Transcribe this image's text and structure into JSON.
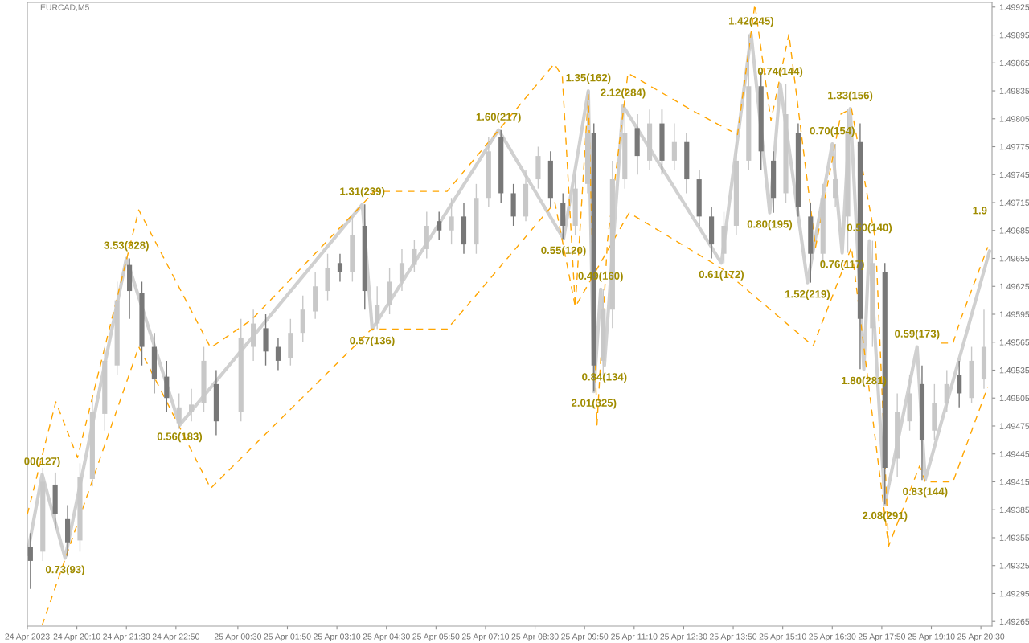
{
  "chart_data": {
    "type": "candlestick",
    "title": "EURCAD,M5",
    "xlim": [
      "2023-04-24T18:50",
      "2023-04-25T20:48"
    ],
    "xticks": [
      {
        "value": "2023-04-24T18:50",
        "label": "24 Apr 2023"
      },
      {
        "value": "2023-04-24T20:10",
        "label": "24 Apr 20:10"
      },
      {
        "value": "2023-04-24T21:30",
        "label": "24 Apr 21:30"
      },
      {
        "value": "2023-04-24T22:50",
        "label": "24 Apr 22:50"
      },
      {
        "value": "2023-04-25T00:30",
        "label": "25 Apr 00:30"
      },
      {
        "value": "2023-04-25T01:50",
        "label": "25 Apr 01:50"
      },
      {
        "value": "2023-04-25T03:10",
        "label": "25 Apr 03:10"
      },
      {
        "value": "2023-04-25T04:30",
        "label": "25 Apr 04:30"
      },
      {
        "value": "2023-04-25T05:50",
        "label": "25 Apr 05:50"
      },
      {
        "value": "2023-04-25T07:10",
        "label": "25 Apr 07:10"
      },
      {
        "value": "2023-04-25T08:30",
        "label": "25 Apr 08:30"
      },
      {
        "value": "2023-04-25T09:50",
        "label": "25 Apr 09:50"
      },
      {
        "value": "2023-04-25T11:10",
        "label": "25 Apr 11:10"
      },
      {
        "value": "2023-04-25T12:30",
        "label": "25 Apr 12:30"
      },
      {
        "value": "2023-04-25T13:50",
        "label": "25 Apr 13:50"
      },
      {
        "value": "2023-04-25T15:10",
        "label": "25 Apr 15:10"
      },
      {
        "value": "2023-04-25T16:30",
        "label": "25 Apr 16:30"
      },
      {
        "value": "2023-04-25T17:50",
        "label": "25 Apr 17:50"
      },
      {
        "value": "2023-04-25T19:10",
        "label": "25 Apr 19:10"
      },
      {
        "value": "2023-04-25T20:30",
        "label": "25 Apr 20:30"
      }
    ],
    "ylim": [
      1.4926,
      1.4993
    ],
    "yticks": [
      1.49265,
      1.49295,
      1.49325,
      1.49355,
      1.49385,
      1.49415,
      1.49445,
      1.49475,
      1.49505,
      1.49535,
      1.49565,
      1.49595,
      1.49625,
      1.49655,
      1.49685,
      1.49715,
      1.49745,
      1.49775,
      1.49805,
      1.49835,
      1.49865,
      1.49895,
      1.49925
    ],
    "series": [
      {
        "type": "line",
        "color": "#ffa500",
        "line_style": "dashed",
        "x": [
          "2023-04-24T18:50",
          "2023-04-24T19:36",
          "2023-04-24T20:11",
          "2023-04-24T21:50",
          "2023-04-24T23:46",
          "2023-04-25T00:52",
          "2023-04-25T03:51",
          "2023-04-25T04:10",
          "2023-04-25T06:08",
          "2023-04-25T09:01",
          "2023-04-25T09:14",
          "2023-04-25T09:35",
          "2023-04-25T09:56",
          "2023-04-25T10:10",
          "2023-04-25T10:27",
          "2023-04-25T11:00",
          "2023-04-25T12:49",
          "2023-04-25T13:57",
          "2023-04-25T14:25",
          "2023-04-25T14:51",
          "2023-04-25T15:20",
          "2023-04-25T16:03",
          "2023-04-25T16:44",
          "2023-04-25T17:01",
          "2023-04-25T17:40",
          "2023-04-25T18:01",
          "2023-04-25T18:30",
          "2023-04-25T19:26",
          "2023-04-25T19:45",
          "2023-04-25T19:57",
          "2023-04-25T20:41"
        ],
        "values": [
          1.4938,
          1.49501,
          1.49441,
          1.49707,
          1.49559,
          1.49589,
          1.49713,
          1.49727,
          1.49727,
          1.49864,
          1.49851,
          1.49603,
          1.49831,
          1.49476,
          1.49674,
          1.49854,
          1.49812,
          1.49788,
          1.49928,
          1.49803,
          1.49896,
          1.49667,
          1.4981,
          1.49816,
          1.49674,
          1.49346,
          null,
          1.49564,
          1.49564,
          1.49589,
          1.49667
        ]
      },
      {
        "type": "line",
        "color": "#ffa500",
        "line_style": "dashed",
        "x": [
          "2023-04-24T19:14",
          "2023-04-24T21:50",
          "2023-04-24T23:46",
          "2023-04-25T04:06",
          "2023-04-25T06:08",
          "2023-04-25T09:02",
          "2023-04-25T09:35",
          "2023-04-25T11:02",
          "2023-04-25T13:32",
          "2023-04-25T15:59",
          "2023-04-25T17:01",
          "2023-04-25T18:01",
          "2023-04-25T18:51",
          "2023-04-25T19:00",
          "2023-04-25T19:45",
          "2023-04-25T20:41"
        ],
        "values": [
          1.49261,
          1.4956,
          1.49408,
          1.49579,
          1.49579,
          1.49715,
          1.49603,
          1.49704,
          1.49644,
          1.49561,
          1.49667,
          1.49346,
          1.49432,
          1.49415,
          1.49415,
          1.49517
        ]
      },
      {
        "type": "line",
        "color": "#d0d0d0",
        "line_style": "solid",
        "x": [
          "2023-04-24T18:50",
          "2023-04-24T19:14",
          "2023-04-24T19:51",
          "2023-04-24T21:30",
          "2023-04-24T22:56",
          "2023-04-25T03:51",
          "2023-04-25T04:07",
          "2023-04-25T07:31",
          "2023-04-25T09:16",
          "2023-04-25T09:56",
          "2023-04-25T10:05",
          "2023-04-25T10:16",
          "2023-04-25T10:22",
          "2023-04-25T10:52",
          "2023-04-25T13:31",
          "2023-04-25T14:19",
          "2023-04-25T14:49",
          "2023-04-25T15:06",
          "2023-04-25T15:50",
          "2023-04-25T16:30",
          "2023-04-25T16:46",
          "2023-04-25T16:59",
          "2023-04-25T17:21",
          "2023-04-25T17:30",
          "2023-04-25T17:55",
          "2023-04-25T18:47",
          "2023-04-25T19:00",
          "2023-04-25T20:44"
        ],
        "values": [
          1.49337,
          1.49423,
          1.49333,
          1.49655,
          1.49476,
          1.49713,
          1.49579,
          1.49793,
          1.49676,
          1.49835,
          1.49512,
          1.49622,
          1.4954,
          1.49819,
          1.4965,
          1.49896,
          1.49704,
          1.49842,
          1.49629,
          1.49778,
          1.49661,
          1.49816,
          1.49536,
          1.49674,
          1.49391,
          1.4956,
          1.49417,
          1.49663
        ]
      },
      {
        "type": "candlestick",
        "color": "#c8c8c8",
        "x": [
          "2023-04-24T19:15",
          "2023-04-24T20:15",
          "2023-04-24T20:35",
          "2023-04-24T20:55",
          "2023-04-24T21:15",
          "2023-04-24T22:55",
          "2023-04-24T23:15",
          "2023-04-24T23:35",
          "2023-04-25T00:35",
          "2023-04-25T00:55",
          "2023-04-25T01:55",
          "2023-04-25T02:15",
          "2023-04-25T02:35",
          "2023-04-25T02:55",
          "2023-04-25T03:35",
          "2023-04-25T04:15",
          "2023-04-25T04:35",
          "2023-04-25T04:55",
          "2023-04-25T05:15",
          "2023-04-25T05:35",
          "2023-04-25T06:15",
          "2023-04-25T06:55",
          "2023-04-25T07:15",
          "2023-04-25T08:15",
          "2023-04-25T08:35",
          "2023-04-25T09:35",
          "2023-04-25T09:55",
          "2023-04-25T10:20",
          "2023-04-25T10:35",
          "2023-04-25T10:55",
          "2023-04-25T11:35",
          "2023-04-25T12:15",
          "2023-04-25T13:35",
          "2023-04-25T13:55",
          "2023-04-25T14:15",
          "2023-04-25T15:15",
          "2023-04-25T16:15",
          "2023-04-25T16:35",
          "2023-04-25T16:55",
          "2023-04-25T17:35",
          "2023-04-25T18:15",
          "2023-04-25T18:35",
          "2023-04-25T19:15",
          "2023-04-25T19:35",
          "2023-04-25T20:15",
          "2023-04-25T20:35"
        ],
        "ohlc": [
          [
            1.4934,
            1.4943,
            1.4933,
            1.49415
          ],
          [
            1.49352,
            1.49435,
            1.4934,
            1.4942
          ],
          [
            1.49418,
            1.49505,
            1.4941,
            1.4949
          ],
          [
            1.49488,
            1.4956,
            1.4947,
            1.49545
          ],
          [
            1.4954,
            1.4963,
            1.4953,
            1.4961
          ],
          [
            1.49478,
            1.4951,
            1.49472,
            1.49495
          ],
          [
            1.4949,
            1.49515,
            1.4948,
            1.49498
          ],
          [
            1.495,
            1.4956,
            1.4949,
            1.49545
          ],
          [
            1.4949,
            1.4959,
            1.4948,
            1.4957
          ],
          [
            1.4956,
            1.496,
            1.49545,
            1.49585
          ],
          [
            1.49548,
            1.4959,
            1.4954,
            1.49575
          ],
          [
            1.49575,
            1.49615,
            1.49565,
            1.496
          ],
          [
            1.49598,
            1.4964,
            1.4959,
            1.49625
          ],
          [
            1.4962,
            1.4966,
            1.4961,
            1.49645
          ],
          [
            1.4964,
            1.497,
            1.4963,
            1.4968
          ],
          [
            1.49585,
            1.49625,
            1.49579,
            1.49605
          ],
          [
            1.49605,
            1.49645,
            1.49595,
            1.4963
          ],
          [
            1.4963,
            1.49665,
            1.4962,
            1.4965
          ],
          [
            1.49648,
            1.49675,
            1.4964,
            1.49665
          ],
          [
            1.49665,
            1.49705,
            1.49655,
            1.4969
          ],
          [
            1.49685,
            1.4972,
            1.4967,
            1.497
          ],
          [
            1.4967,
            1.49735,
            1.4966,
            1.4972
          ],
          [
            1.4972,
            1.49785,
            1.4971,
            1.4977
          ],
          [
            1.497,
            1.4975,
            1.49695,
            1.49735
          ],
          [
            1.4974,
            1.49775,
            1.4973,
            1.49765
          ],
          [
            1.4969,
            1.49745,
            1.4968,
            1.4973
          ],
          [
            1.49735,
            1.49835,
            1.49725,
            1.4979
          ],
          [
            1.49545,
            1.49622,
            1.4953,
            1.496
          ],
          [
            1.496,
            1.4976,
            1.4958,
            1.4974
          ],
          [
            1.4974,
            1.49819,
            1.4973,
            1.4979
          ],
          [
            1.4976,
            1.49815,
            1.4975,
            1.498
          ],
          [
            1.4976,
            1.498,
            1.4975,
            1.4978
          ],
          [
            1.4966,
            1.49705,
            1.4965,
            1.4969
          ],
          [
            1.4969,
            1.4978,
            1.4968,
            1.4976
          ],
          [
            1.4976,
            1.49896,
            1.4975,
            1.4984
          ],
          [
            1.49725,
            1.49842,
            1.49715,
            1.4981
          ],
          [
            1.4966,
            1.49735,
            1.4965,
            1.4972
          ],
          [
            1.4972,
            1.49778,
            1.4971,
            1.4974
          ],
          [
            1.497,
            1.49816,
            1.49661,
            1.4979
          ],
          [
            1.4958,
            1.49674,
            1.4956,
            1.4965
          ],
          [
            1.4944,
            1.4951,
            1.4942,
            1.4949
          ],
          [
            1.4948,
            1.4953,
            1.4947,
            1.4951
          ],
          [
            1.4947,
            1.4952,
            1.4946,
            1.495
          ],
          [
            1.495,
            1.49535,
            1.4949,
            1.4952
          ],
          [
            1.49505,
            1.4956,
            1.495,
            1.49545
          ],
          [
            1.49525,
            1.496,
            1.49515,
            1.4956
          ]
        ]
      },
      {
        "type": "candlestick",
        "color": "#787878",
        "x": [
          "2023-04-24T18:55",
          "2023-04-24T19:35",
          "2023-04-24T19:55",
          "2023-04-24T21:35",
          "2023-04-24T21:55",
          "2023-04-24T22:15",
          "2023-04-24T22:35",
          "2023-04-24T23:55",
          "2023-04-25T01:15",
          "2023-04-25T01:35",
          "2023-04-25T03:15",
          "2023-04-25T03:55",
          "2023-04-25T05:55",
          "2023-04-25T06:35",
          "2023-04-25T07:35",
          "2023-04-25T07:55",
          "2023-04-25T08:55",
          "2023-04-25T09:15",
          "2023-04-25T10:05",
          "2023-04-25T11:15",
          "2023-04-25T11:55",
          "2023-04-25T12:35",
          "2023-04-25T12:55",
          "2023-04-25T13:15",
          "2023-04-25T14:35",
          "2023-04-25T14:55",
          "2023-04-25T15:35",
          "2023-04-25T15:55",
          "2023-04-25T17:15",
          "2023-04-25T17:55",
          "2023-04-25T18:55",
          "2023-04-25T19:55"
        ],
        "ohlc": [
          [
            1.49345,
            1.4936,
            1.493,
            1.4933
          ],
          [
            1.49412,
            1.49425,
            1.49365,
            1.4938
          ],
          [
            1.49375,
            1.4939,
            1.49335,
            1.4935
          ],
          [
            1.49648,
            1.49655,
            1.4959,
            1.4962
          ],
          [
            1.49618,
            1.4963,
            1.4954,
            1.4956
          ],
          [
            1.4956,
            1.49575,
            1.4951,
            1.49525
          ],
          [
            1.49528,
            1.49545,
            1.4949,
            1.49505
          ],
          [
            1.4952,
            1.49535,
            1.49465,
            1.4948
          ],
          [
            1.4958,
            1.49595,
            1.4954,
            1.49555
          ],
          [
            1.4956,
            1.4957,
            1.49535,
            1.49545
          ],
          [
            1.4965,
            1.4966,
            1.4963,
            1.4964
          ],
          [
            1.4969,
            1.49713,
            1.496,
            1.4962
          ],
          [
            1.49695,
            1.49705,
            1.49675,
            1.49685
          ],
          [
            1.497,
            1.49715,
            1.4966,
            1.4967
          ],
          [
            1.49785,
            1.49793,
            1.49715,
            1.49725
          ],
          [
            1.49725,
            1.49735,
            1.4969,
            1.497
          ],
          [
            1.4976,
            1.4977,
            1.4971,
            1.4972
          ],
          [
            1.49715,
            1.49725,
            1.49676,
            1.4969
          ],
          [
            1.4979,
            1.498,
            1.49512,
            1.4954
          ],
          [
            1.49795,
            1.4981,
            1.49745,
            1.49765
          ],
          [
            1.498,
            1.49815,
            1.49745,
            1.4976
          ],
          [
            1.4978,
            1.4979,
            1.49725,
            1.4974
          ],
          [
            1.4974,
            1.4975,
            1.4969,
            1.497
          ],
          [
            1.497,
            1.4971,
            1.49655,
            1.4967
          ],
          [
            1.4984,
            1.49855,
            1.4975,
            1.4977
          ],
          [
            1.4976,
            1.4977,
            1.49704,
            1.4972
          ],
          [
            1.4979,
            1.498,
            1.497,
            1.4971
          ],
          [
            1.497,
            1.49715,
            1.49629,
            1.4966
          ],
          [
            1.4978,
            1.498,
            1.49536,
            1.4959
          ],
          [
            1.4964,
            1.4965,
            1.49391,
            1.4943
          ],
          [
            1.4952,
            1.4954,
            1.49417,
            1.4946
          ],
          [
            1.4953,
            1.49545,
            1.49495,
            1.4951
          ]
        ]
      }
    ],
    "annotations": [
      {
        "text": "00(127)",
        "x": "2023-04-24T19:14",
        "y": 1.49423
      },
      {
        "text": "0.73(93)",
        "x": "2023-04-24T19:51",
        "y": 1.49333
      },
      {
        "text": "3.53(328)",
        "x": "2023-04-24T21:30",
        "y": 1.49655
      },
      {
        "text": "0.56(183)",
        "x": "2023-04-24T22:56",
        "y": 1.49476
      },
      {
        "text": "1.31(239)",
        "x": "2023-04-25T03:51",
        "y": 1.49713
      },
      {
        "text": "0.57(136)",
        "x": "2023-04-25T04:07",
        "y": 1.49579
      },
      {
        "text": "1.60(217)",
        "x": "2023-04-25T07:31",
        "y": 1.49793
      },
      {
        "text": "0.55(120)",
        "x": "2023-04-25T09:16",
        "y": 1.49676
      },
      {
        "text": "1.35(162)",
        "x": "2023-04-25T09:56",
        "y": 1.49835
      },
      {
        "text": "2.01(325)",
        "x": "2023-04-25T10:05",
        "y": 1.49512
      },
      {
        "text": "0.49(160)",
        "x": "2023-04-25T10:16",
        "y": 1.49622
      },
      {
        "text": "0.84(134)",
        "x": "2023-04-25T10:22",
        "y": 1.4954
      },
      {
        "text": "2.12(284)",
        "x": "2023-04-25T10:52",
        "y": 1.49819
      },
      {
        "text": "0.61(172)",
        "x": "2023-04-25T13:31",
        "y": 1.4965
      },
      {
        "text": "1.42(245)",
        "x": "2023-04-25T14:19",
        "y": 1.49896
      },
      {
        "text": "0.80(195)",
        "x": "2023-04-25T14:49",
        "y": 1.49704
      },
      {
        "text": "0.74(144)",
        "x": "2023-04-25T15:06",
        "y": 1.49842
      },
      {
        "text": "1.52(219)",
        "x": "2023-04-25T15:50",
        "y": 1.49629
      },
      {
        "text": "0.70(154)",
        "x": "2023-04-25T16:30",
        "y": 1.49778
      },
      {
        "text": "0.76(117)",
        "x": "2023-04-25T16:46",
        "y": 1.49661
      },
      {
        "text": "1.33(156)",
        "x": "2023-04-25T16:59",
        "y": 1.49816
      },
      {
        "text": "1.80(281)",
        "x": "2023-04-25T17:21",
        "y": 1.49536
      },
      {
        "text": "0.50(140)",
        "x": "2023-04-25T17:30",
        "y": 1.49674
      },
      {
        "text": "2.08(291)",
        "x": "2023-04-25T17:55",
        "y": 1.49391
      },
      {
        "text": "0.59(173)",
        "x": "2023-04-25T18:47",
        "y": 1.4956
      },
      {
        "text": "0.83(144)",
        "x": "2023-04-25T19:00",
        "y": 1.49417
      },
      "1.9"
    ]
  }
}
